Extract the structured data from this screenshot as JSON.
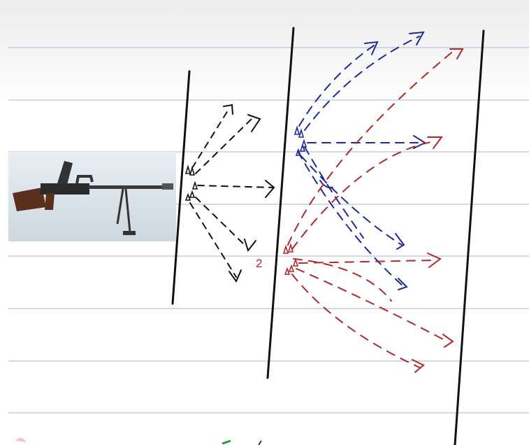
{
  "canvas": {
    "background": "#ffffff",
    "rule_color": "#c5cfe0"
  },
  "photo": {
    "subject": "light-machine-gun-photo"
  },
  "colors": {
    "ink_black": "#111111",
    "ink_blue": "#1f2a9a",
    "ink_red": "#b3282d"
  },
  "labels": {
    "fork_number": "2"
  }
}
